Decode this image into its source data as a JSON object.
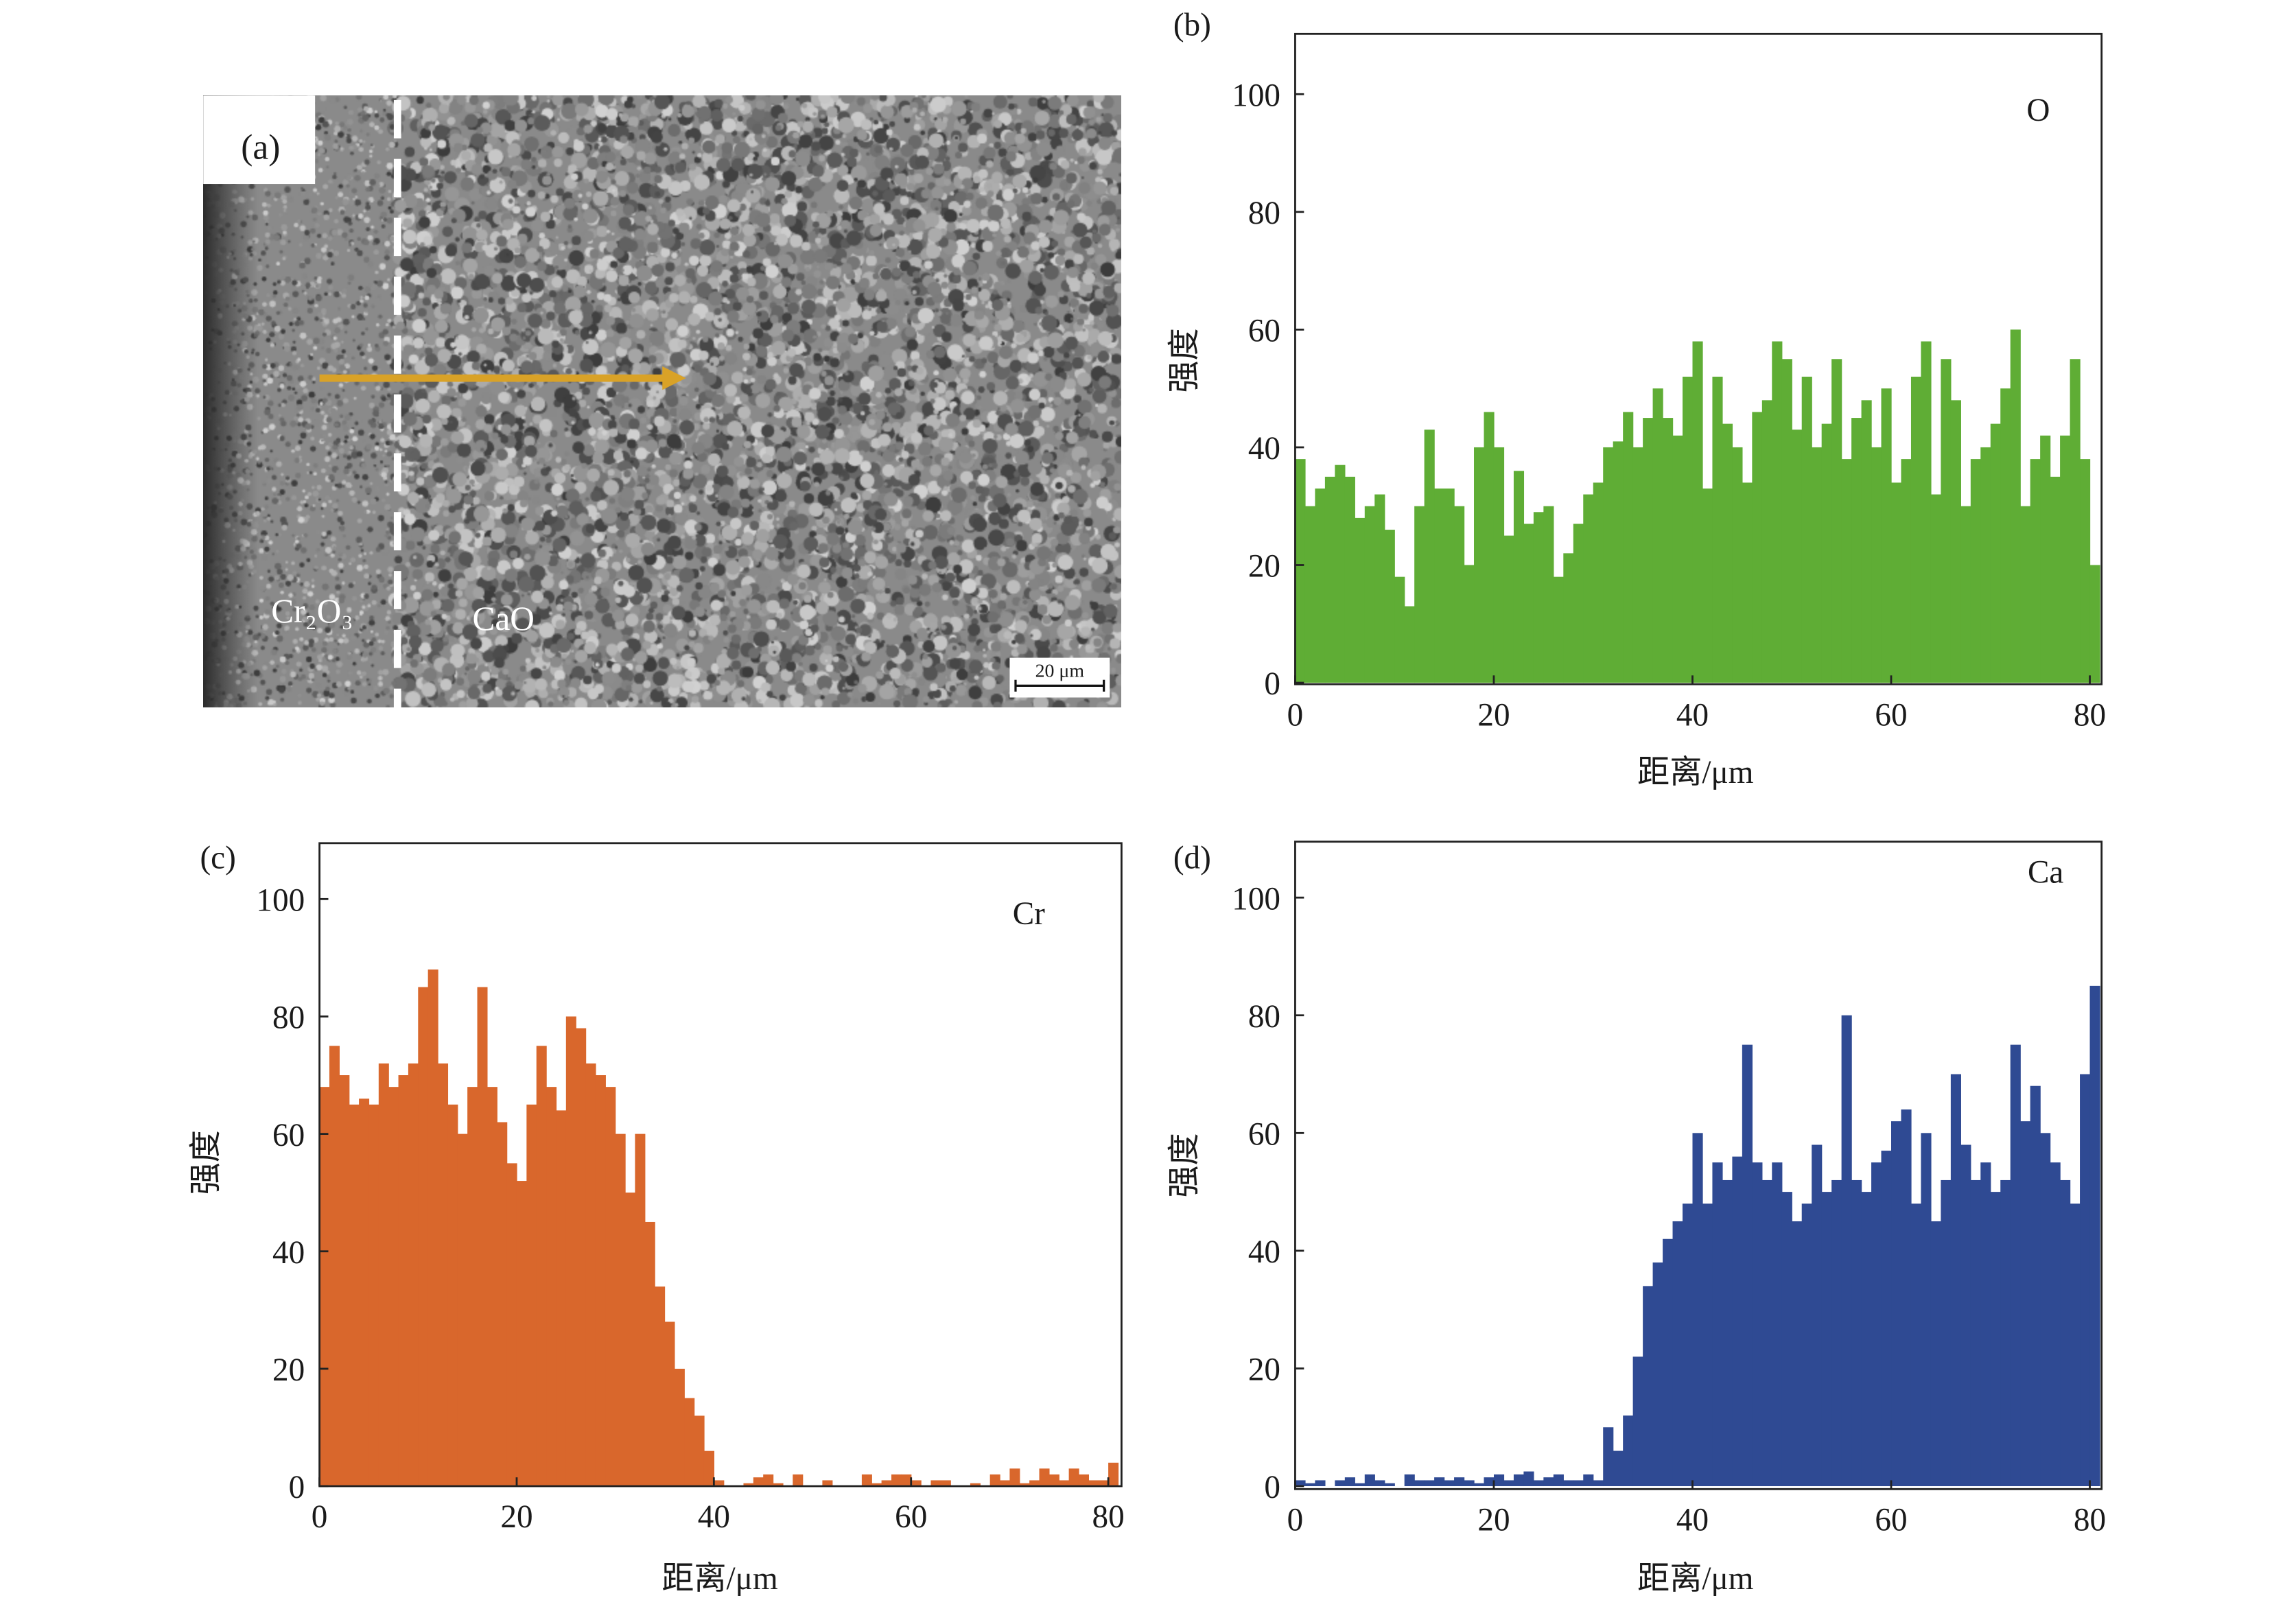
{
  "panel_a": {
    "label": "(a)",
    "region_left": "Cr₂O₃",
    "region_right": "CaO",
    "scale_bar": "20 μm",
    "arrow_color": "#D9A227"
  },
  "chart_data": [
    {
      "panel": "(b)",
      "type": "area",
      "element": "O",
      "color": "#5FAD35",
      "xlabel": "距离/μm",
      "ylabel": "强度",
      "xlim": [
        0,
        81
      ],
      "ylim": [
        0,
        110
      ],
      "xticks": [
        0,
        20,
        40,
        60,
        80
      ],
      "yticks": [
        0,
        20,
        40,
        60,
        80,
        100
      ],
      "x_step": 1,
      "values": [
        38,
        30,
        33,
        35,
        37,
        35,
        28,
        30,
        32,
        26,
        18,
        13,
        30,
        43,
        33,
        33,
        30,
        20,
        40,
        46,
        40,
        25,
        36,
        27,
        29,
        30,
        18,
        22,
        27,
        32,
        34,
        40,
        41,
        46,
        40,
        45,
        50,
        45,
        42,
        52,
        58,
        33,
        52,
        44,
        40,
        34,
        46,
        48,
        58,
        55,
        43,
        52,
        40,
        44,
        55,
        38,
        45,
        48,
        40,
        50,
        34,
        38,
        52,
        58,
        32,
        55,
        48,
        30,
        38,
        40,
        44,
        50,
        60,
        30,
        38,
        42,
        35,
        42,
        55,
        38,
        20
      ]
    },
    {
      "panel": "(c)",
      "type": "area",
      "element": "Cr",
      "color": "#D9672C",
      "xlabel": "距离/μm",
      "ylabel": "强度",
      "xlim": [
        0,
        81
      ],
      "ylim": [
        0,
        110
      ],
      "xticks": [
        0,
        20,
        40,
        60,
        80
      ],
      "yticks": [
        0,
        20,
        40,
        60,
        80,
        100
      ],
      "x_step": 1,
      "values": [
        68,
        75,
        70,
        65,
        66,
        65,
        72,
        68,
        70,
        72,
        85,
        88,
        72,
        65,
        60,
        68,
        85,
        68,
        62,
        55,
        52,
        65,
        75,
        68,
        64,
        80,
        78,
        72,
        70,
        68,
        60,
        50,
        60,
        45,
        34,
        28,
        20,
        15,
        12,
        6,
        1,
        0,
        0,
        0.5,
        1.5,
        2,
        0.5,
        0,
        2,
        0,
        0,
        1,
        0,
        0,
        0,
        2,
        0.5,
        1,
        2,
        2,
        1,
        0,
        1,
        1,
        0,
        0,
        0.5,
        0,
        2,
        1,
        3,
        0.5,
        1,
        3,
        2,
        1,
        3,
        2,
        1,
        1,
        4
      ]
    },
    {
      "panel": "(d)",
      "type": "area",
      "element": "Ca",
      "color": "#2F4A93",
      "xlabel": "距离/μm",
      "ylabel": "强度",
      "xlim": [
        0,
        81
      ],
      "ylim": [
        0,
        110
      ],
      "xticks": [
        0,
        20,
        40,
        60,
        80
      ],
      "yticks": [
        0,
        20,
        40,
        60,
        80,
        100
      ],
      "x_step": 1,
      "values": [
        1,
        0.5,
        1,
        0,
        1,
        1.5,
        0.5,
        2,
        1,
        0.5,
        0,
        2,
        1,
        1,
        1.5,
        1,
        1.5,
        1,
        0.5,
        1.5,
        2,
        1,
        2,
        2.5,
        1,
        1.5,
        2,
        1,
        1,
        2,
        1,
        10,
        6,
        12,
        22,
        34,
        38,
        42,
        45,
        48,
        60,
        48,
        55,
        52,
        56,
        75,
        55,
        52,
        55,
        50,
        45,
        48,
        58,
        50,
        52,
        80,
        52,
        50,
        55,
        57,
        62,
        64,
        48,
        60,
        45,
        52,
        70,
        58,
        52,
        55,
        50,
        52,
        75,
        62,
        68,
        60,
        55,
        52,
        48,
        70,
        85
      ]
    }
  ]
}
